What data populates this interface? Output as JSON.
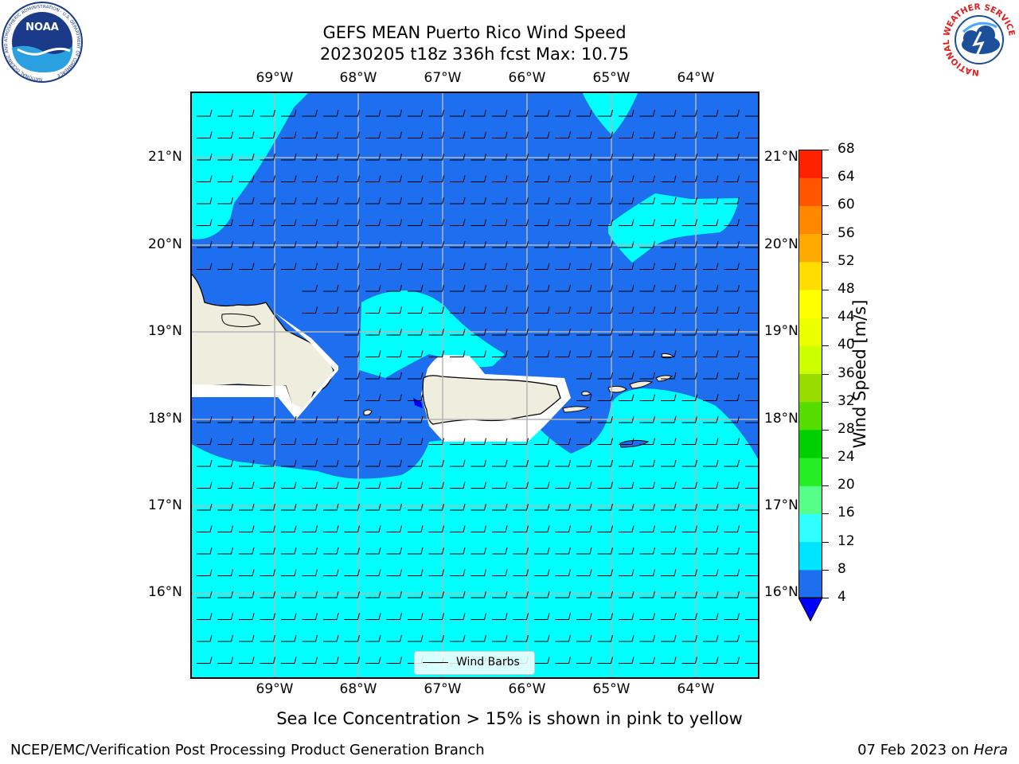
{
  "title": {
    "line1": "GEFS MEAN Puerto Rico Wind Speed",
    "line2": "20230205 t18z 336h fcst   Max: 10.75"
  },
  "map": {
    "lon_labels": [
      "69°W",
      "68°W",
      "67°W",
      "66°W",
      "65°W",
      "64°W"
    ],
    "lat_labels": [
      "21°N",
      "20°N",
      "19°N",
      "18°N",
      "17°N",
      "16°N"
    ],
    "legend_label": "Wind Barbs",
    "land_color": "#efedde",
    "shallow_color": "#00ffff",
    "deep_color": "#1e6ef0"
  },
  "colorbar": {
    "label": "Wind Speed [m/s]",
    "ticks": [
      "4",
      "8",
      "12",
      "16",
      "20",
      "24",
      "28",
      "32",
      "36",
      "40",
      "44",
      "48",
      "52",
      "56",
      "60",
      "64",
      "68"
    ],
    "colors": [
      "#1e6ef0",
      "#00e5ff",
      "#2fffff",
      "#5fffff",
      "#9ffff5",
      "#55ff88",
      "#25ee25",
      "#00d000",
      "#55dd00",
      "#99dd00",
      "#ccff00",
      "#eeff00",
      "#ffff00",
      "#ffdd00",
      "#ffaa00",
      "#ff8800",
      "#ff5500",
      "#ff2200",
      "#ff0000"
    ],
    "under_color": "#0000ff"
  },
  "caption": "Sea Ice Concentration > 15% is shown in pink to yellow",
  "footer": {
    "left": "NCEP/EMC/Verification Post Processing Product Generation Branch",
    "right_date": "07 Feb 2023 on ",
    "right_host": "Hera"
  },
  "logos": {
    "noaa": "NOAA",
    "noaa_ring": "NATIONAL OCEANIC AND ATMOSPHERIC ADMINISTRATION · U.S. DEPARTMENT OF COMMERCE",
    "nws_ring": "NATIONAL WEATHER SERVICE"
  }
}
